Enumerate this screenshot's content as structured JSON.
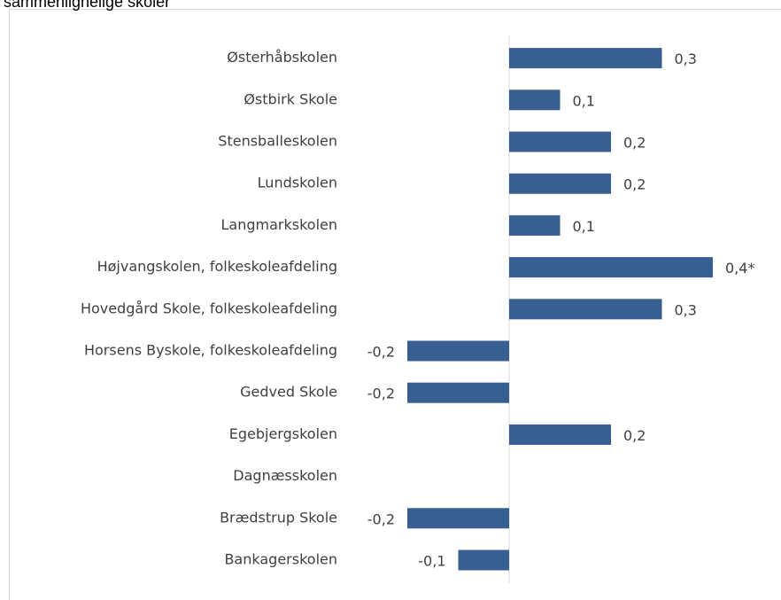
{
  "chart_data": {
    "type": "barh",
    "title": "sammenlignelige skoler",
    "categories": [
      "Østerhåbskolen",
      "Østbirk Skole",
      "Stensballeskolen",
      "Lundskolen",
      "Langmarkskolen",
      "Højvangskolen, folkeskoleafdeling",
      "Hovedgård Skole, folkeskoleafdeling",
      "Horsens Byskole, folkeskoleafdeling",
      "Gedved Skole",
      "Egebjergskolen",
      "Dagnæsskolen",
      "Brædstrup Skole",
      "Bankagerskolen"
    ],
    "values": [
      0.3,
      0.1,
      0.2,
      0.2,
      0.1,
      0.4,
      0.3,
      -0.2,
      -0.2,
      0.2,
      null,
      -0.2,
      -0.1
    ],
    "value_labels": [
      "0,3",
      "0,1",
      "0,2",
      "0,2",
      "0,1",
      "0,4*",
      "0,3",
      "-0,2",
      "-0,2",
      "0,2",
      null,
      "-0,2",
      "-0,1"
    ],
    "color": "#375f91",
    "xlim": [
      -0.3,
      0.5
    ]
  }
}
